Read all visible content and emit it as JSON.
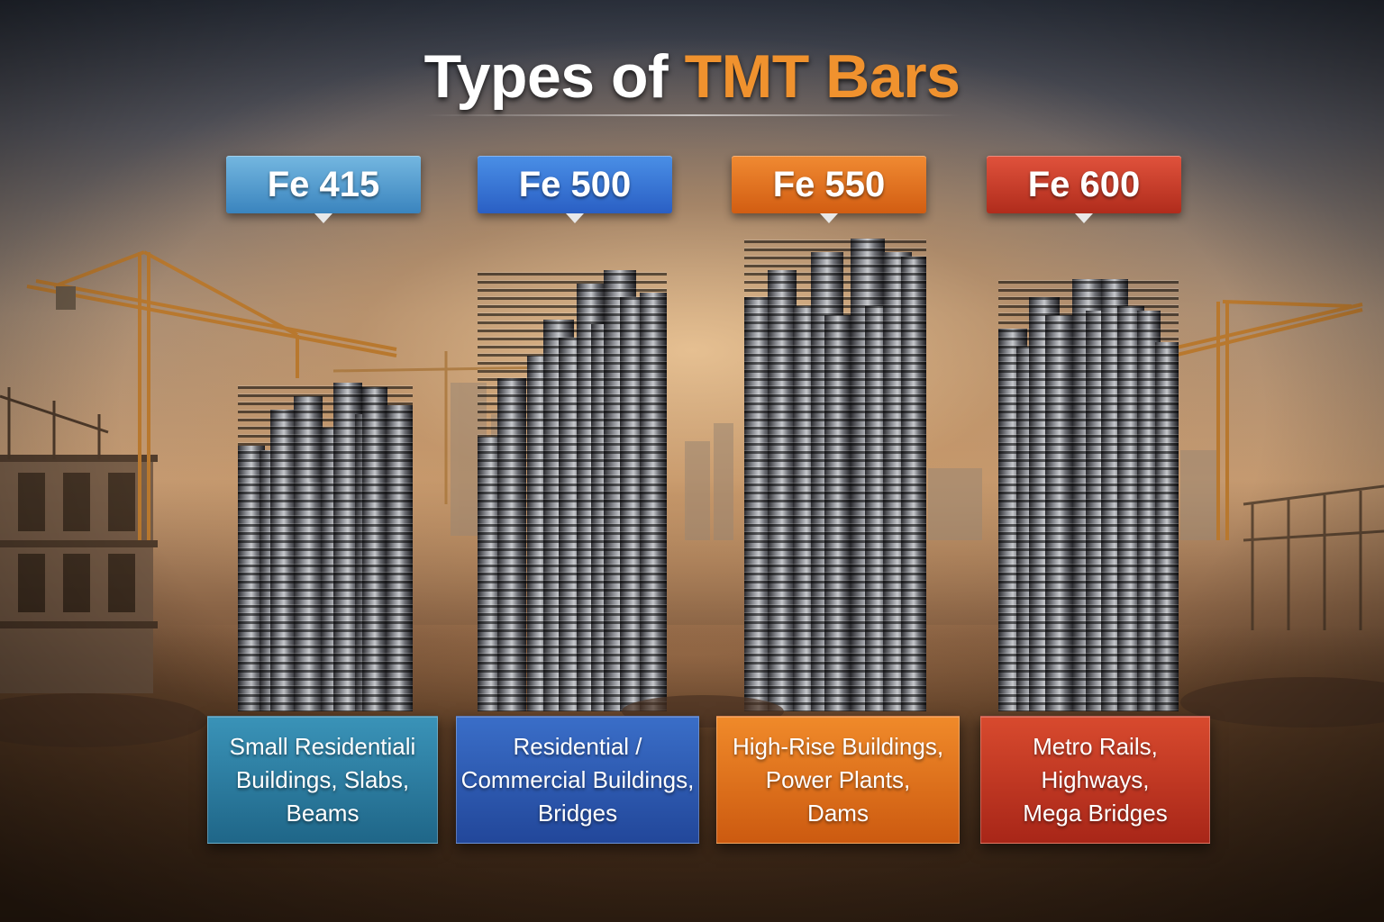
{
  "title": {
    "part1": "Types of",
    "part2": "TMT Bars"
  },
  "grades": [
    {
      "label": "Fe 415",
      "uses": [
        "Small Residentiali",
        "Buildings, Slabs,",
        "Beams"
      ],
      "color": "#3a84be"
    },
    {
      "label": "Fe 500",
      "uses": [
        "Residential /",
        "Commercial Buildings,",
        "Bridges"
      ],
      "color": "#2a5fc4"
    },
    {
      "label": "Fe 550",
      "uses": [
        "High-Rise Buildings,",
        "Power Plants,",
        "Dams"
      ],
      "color": "#d25d12"
    },
    {
      "label": "Fe 600",
      "uses": [
        "Metro Rails,",
        "Highways,",
        "Mega Bridges"
      ],
      "color": "#b02c1c"
    }
  ],
  "accent_color": "#f0922e"
}
